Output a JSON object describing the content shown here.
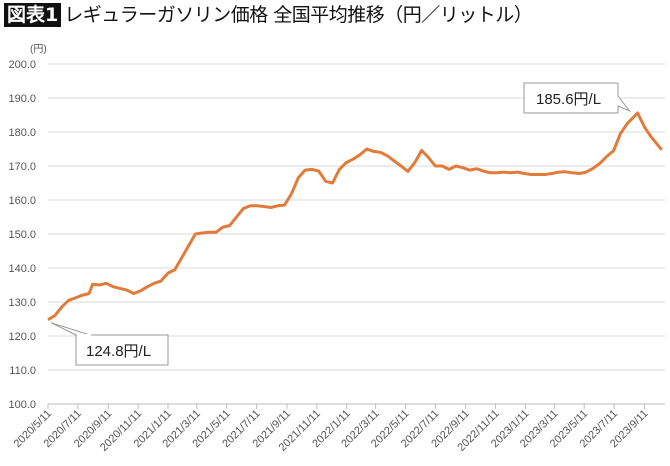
{
  "header": {
    "badge": "図表1",
    "title": "レギュラーガソリン価格 全国平均推移（円／リットル）"
  },
  "chart_data": {
    "type": "line",
    "title": "レギュラーガソリン価格 全国平均推移（円／リットル）",
    "ylabel": "(円)",
    "xlabel": "",
    "ylim": [
      100,
      200
    ],
    "yticks": [
      "100.0",
      "110.0",
      "120.0",
      "130.0",
      "140.0",
      "150.0",
      "160.0",
      "170.0",
      "180.0",
      "190.0",
      "200.0"
    ],
    "xlim": [
      "2020-05-11",
      "2023-10-23"
    ],
    "xticks": [
      "2020/5/11",
      "2020/7/11",
      "2020/9/11",
      "2020/11/11",
      "2021/1/11",
      "2021/3/11",
      "2021/5/11",
      "2021/7/11",
      "2021/9/11",
      "2021/11/11",
      "2022/1/11",
      "2022/3/11",
      "2022/5/11",
      "2022/7/11",
      "2022/9/11",
      "2022/11/11",
      "2023/1/11",
      "2023/3/11",
      "2023/5/11",
      "2023/7/11",
      "2023/9/11"
    ],
    "grid": true,
    "color": "#E07B39",
    "series": [
      {
        "x": [
          "2020-05-11",
          "2020-05-25",
          "2020-06-08",
          "2020-06-22",
          "2020-07-06",
          "2020-07-20",
          "2020-08-03",
          "2020-08-10",
          "2020-08-24",
          "2020-09-07",
          "2020-09-21",
          "2020-10-05",
          "2020-10-19",
          "2020-11-02",
          "2020-11-16",
          "2020-11-30",
          "2020-12-14",
          "2020-12-28",
          "2021-01-11",
          "2021-01-25",
          "2021-02-08",
          "2021-02-22",
          "2021-03-08",
          "2021-03-22",
          "2021-04-05",
          "2021-04-19",
          "2021-05-03",
          "2021-05-17",
          "2021-05-31",
          "2021-06-14",
          "2021-06-28",
          "2021-07-12",
          "2021-07-26",
          "2021-08-09",
          "2021-08-23",
          "2021-09-06",
          "2021-09-20",
          "2021-10-04",
          "2021-10-18",
          "2021-11-01",
          "2021-11-15",
          "2021-11-29",
          "2021-12-13",
          "2021-12-27",
          "2022-01-10",
          "2022-01-24",
          "2022-02-07",
          "2022-02-21",
          "2022-03-07",
          "2022-03-21",
          "2022-04-04",
          "2022-04-18",
          "2022-05-02",
          "2022-05-16",
          "2022-05-30",
          "2022-06-13",
          "2022-06-27",
          "2022-07-11",
          "2022-07-25",
          "2022-08-08",
          "2022-08-22",
          "2022-09-05",
          "2022-09-19",
          "2022-10-03",
          "2022-10-17",
          "2022-10-31",
          "2022-11-14",
          "2022-11-28",
          "2022-12-12",
          "2022-12-26",
          "2023-01-09",
          "2023-01-23",
          "2023-02-06",
          "2023-02-20",
          "2023-03-06",
          "2023-03-20",
          "2023-04-03",
          "2023-04-17",
          "2023-05-01",
          "2023-05-15",
          "2023-05-29",
          "2023-06-12",
          "2023-06-26",
          "2023-07-10",
          "2023-07-24",
          "2023-08-07",
          "2023-08-28",
          "2023-09-11",
          "2023-09-25",
          "2023-10-16"
        ],
        "values": [
          124.8,
          126,
          128.5,
          130.5,
          131.2,
          132,
          132.5,
          135.2,
          135,
          135.5,
          134.5,
          134,
          133.5,
          132.5,
          133.3,
          134.5,
          135.5,
          136.2,
          138.5,
          139.5,
          143,
          146.5,
          150,
          150.3,
          150.5,
          150.5,
          152,
          152.5,
          155,
          157.5,
          158.3,
          158.3,
          158.1,
          157.8,
          158.3,
          158.5,
          161.8,
          166.5,
          168.8,
          169,
          168.5,
          165.5,
          165,
          169,
          171,
          172,
          173.3,
          175,
          174.3,
          174,
          173,
          171.5,
          170,
          168.4,
          171,
          174.6,
          172.5,
          170,
          170,
          169,
          170,
          169.5,
          168.8,
          169.2,
          168.5,
          168,
          168,
          168.2,
          168,
          168.2,
          167.8,
          167.5,
          167.5,
          167.5,
          167.8,
          168.2,
          168.3,
          168,
          167.8,
          168.2,
          169.3,
          170.8,
          172.8,
          174.5,
          179.5,
          182.5,
          185.6,
          181.5,
          178.5,
          174.8
        ]
      }
    ],
    "annotations": [
      {
        "label": "124.8円/L",
        "x": "2020-05-11",
        "value": 124.8
      },
      {
        "label": "185.6円/L",
        "x": "2023-08-28",
        "value": 185.6
      }
    ]
  }
}
